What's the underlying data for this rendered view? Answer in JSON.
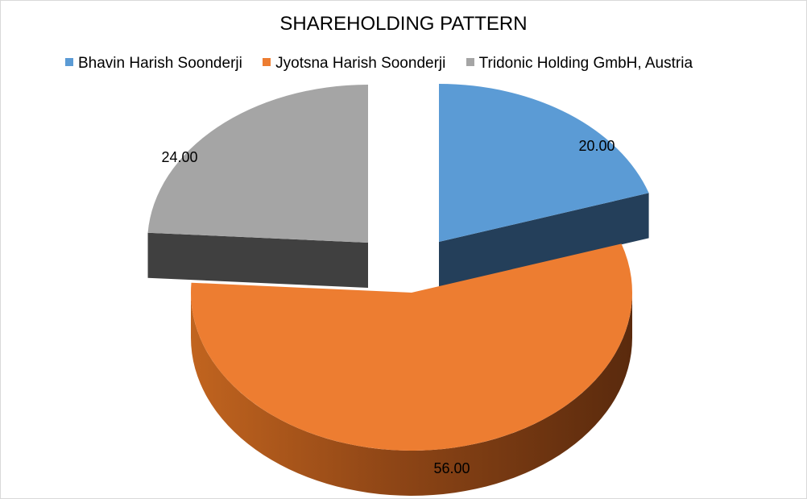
{
  "chart_data": {
    "type": "pie",
    "title": "SHAREHOLDING PATTERN",
    "categories": [
      "Bhavin Harish Soonderji",
      "Jyotsna Harish Soonderji",
      "Tridonic Holding GmbH, Austria"
    ],
    "values": [
      20,
      56,
      24
    ],
    "data_labels": [
      "20.00",
      "56.00",
      "24.00"
    ],
    "colors": [
      "#5B9BD5",
      "#ED7D31",
      "#A5A5A5"
    ],
    "style": "3d-exploded",
    "legend_position": "top"
  }
}
